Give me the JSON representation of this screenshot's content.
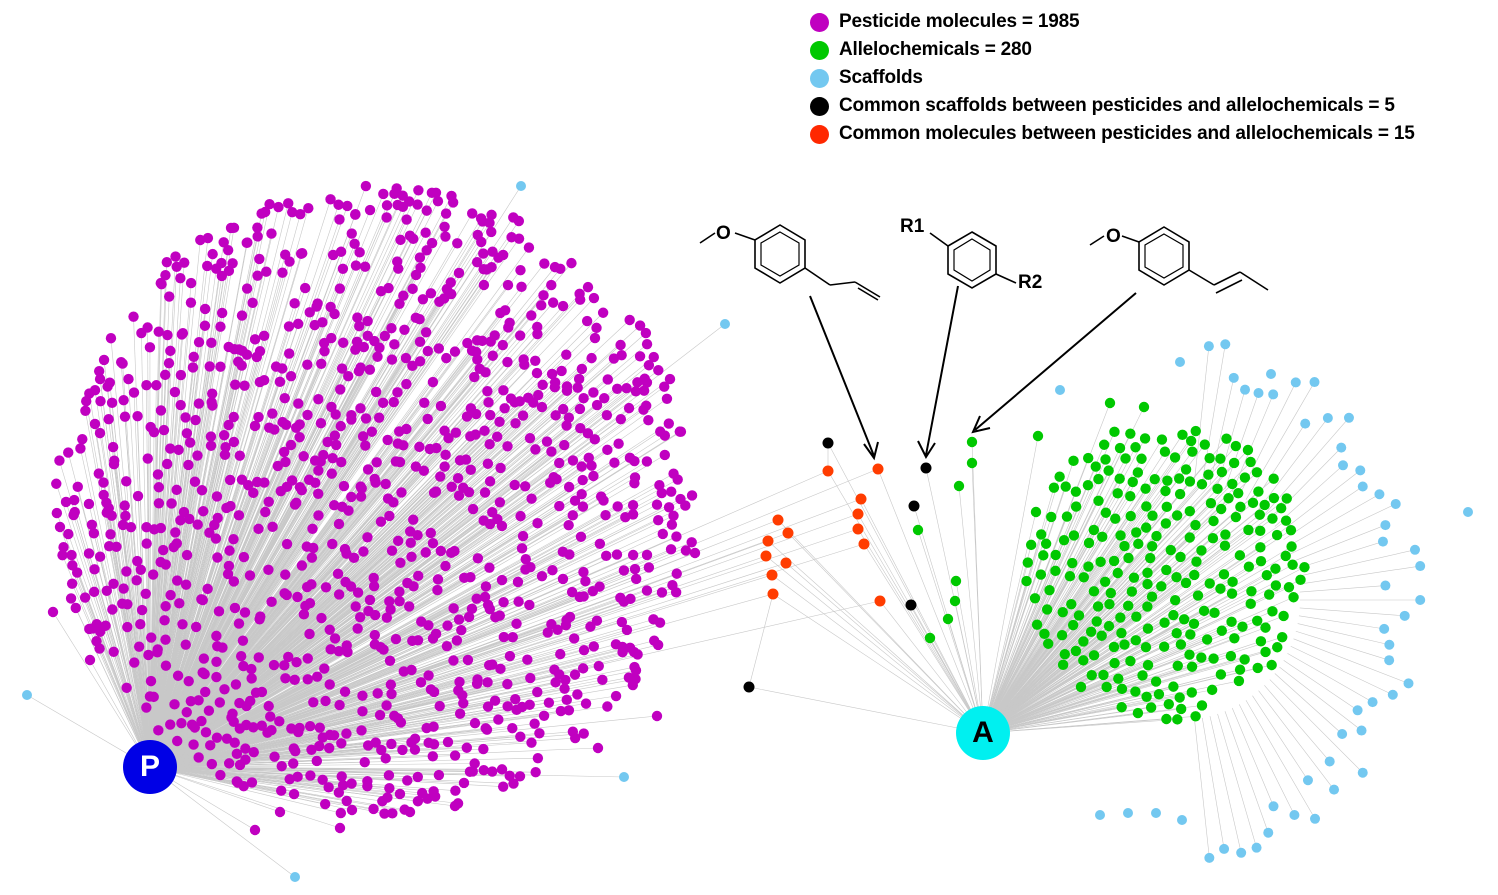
{
  "legend": {
    "items": [
      {
        "label": "Pesticide molecules = 1985",
        "color": "#c000c0"
      },
      {
        "label": "Allelochemicals = 280",
        "color": "#00c800"
      },
      {
        "label": "Scaffolds",
        "color": "#73c8f0"
      },
      {
        "label": "Common scaffolds between pesticides and allelochemicals = 5",
        "color": "#000000"
      },
      {
        "label": "Common molecules between pesticides and allelochemicals = 15",
        "color": "#ff2800"
      }
    ]
  },
  "hubs": {
    "pesticides": {
      "label": "P",
      "color": "#0000e6"
    },
    "allelochemicals": {
      "label": "A",
      "color": "#00f0f0"
    }
  },
  "structures": {
    "r1_label": "R1",
    "r2_label": "R2",
    "methoxy_o_left": "O",
    "methoxy_o_right": "O"
  },
  "colors": {
    "edge": "#c8c8c8",
    "pesticide_node": "#c000c0",
    "allelochemical_node": "#00c800",
    "scaffold_node": "#73c8f0",
    "common_scaffold_node": "#000000",
    "common_molecule_node": "#ff3c00"
  }
}
